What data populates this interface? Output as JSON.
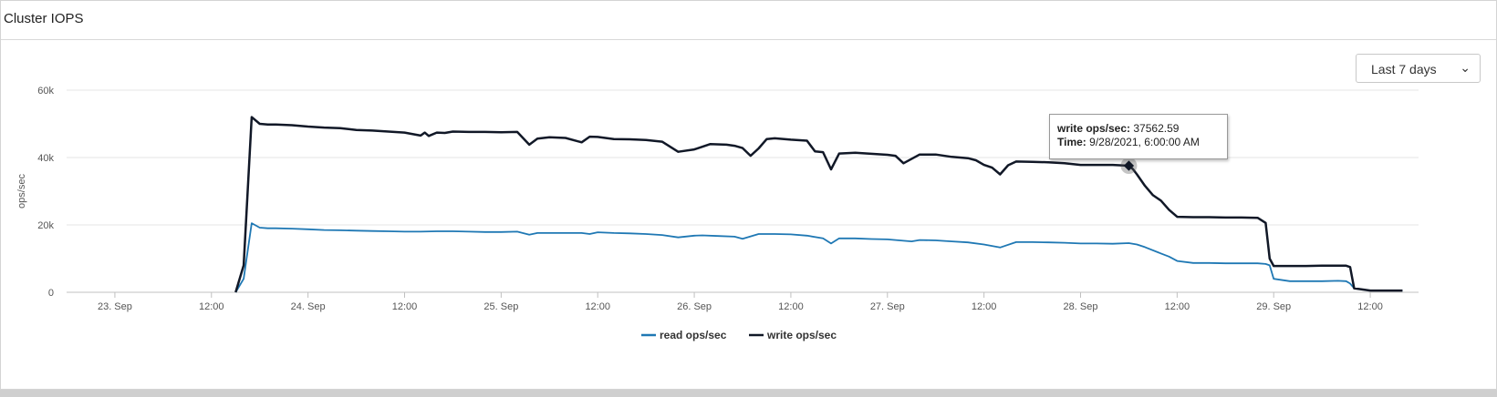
{
  "panel": {
    "title": "Cluster IOPS"
  },
  "range_select": {
    "value": "Last 7 days"
  },
  "tooltip": {
    "series_label": "write ops/sec",
    "value": "37562.59",
    "time_label": "Time",
    "time_value": "9/28/2021, 6:00:00 AM"
  },
  "colors": {
    "read": "#1f78b4",
    "write": "#111827",
    "grid": "#e6e6e6"
  },
  "chart_data": {
    "type": "line",
    "title": "",
    "xlabel": "",
    "ylabel": "ops/sec",
    "ylim": [
      0,
      60000
    ],
    "yticks": [
      0,
      20000,
      40000,
      60000
    ],
    "ytick_labels": [
      "0",
      "20k",
      "40k",
      "60k"
    ],
    "x_unit": "hours since 23 Sep 00:00",
    "xlim": [
      -6,
      162
    ],
    "xticks": [
      0,
      12,
      24,
      36,
      48,
      60,
      72,
      84,
      96,
      108,
      120,
      132,
      144,
      156
    ],
    "xtick_labels": [
      "23. Sep",
      "12:00",
      "24. Sep",
      "12:00",
      "25. Sep",
      "12:00",
      "26. Sep",
      "12:00",
      "27. Sep",
      "12:00",
      "28. Sep",
      "12:00",
      "29. Sep",
      "12:00"
    ],
    "legend": "bottom-center",
    "grid": true,
    "series": [
      {
        "name": "read ops/sec",
        "color": "#1f78b4",
        "x": [
          15,
          16,
          17,
          18,
          19,
          20,
          22,
          24,
          26,
          28,
          30,
          32,
          34,
          36,
          38,
          40,
          42,
          44,
          46,
          48,
          50,
          51.5,
          52.5,
          54,
          56,
          58,
          59,
          60,
          62,
          64,
          66,
          68,
          70,
          72,
          73,
          75,
          77,
          78,
          80,
          82,
          84,
          86,
          88,
          89,
          90,
          92,
          94,
          96,
          98,
          99,
          100,
          102,
          104,
          106,
          108,
          110,
          112,
          114,
          116,
          118,
          120,
          122,
          124,
          126,
          127,
          128,
          130,
          131,
          132,
          134,
          136,
          138,
          140,
          142,
          143,
          143.5,
          144,
          146,
          148,
          150,
          152,
          153,
          153.5,
          154,
          156,
          158,
          160
        ],
        "y": [
          0,
          4000,
          20500,
          19200,
          19000,
          19000,
          18900,
          18700,
          18500,
          18400,
          18300,
          18200,
          18100,
          18000,
          18000,
          18100,
          18100,
          18000,
          17900,
          17900,
          18000,
          17100,
          17600,
          17600,
          17600,
          17600,
          17300,
          17800,
          17600,
          17500,
          17300,
          17000,
          16300,
          16800,
          16900,
          16700,
          16500,
          15900,
          17300,
          17300,
          17200,
          16800,
          16000,
          14500,
          16000,
          16000,
          15800,
          15700,
          15300,
          15100,
          15500,
          15400,
          15100,
          14800,
          14200,
          13300,
          14900,
          14900,
          14800,
          14700,
          14500,
          14500,
          14400,
          14600,
          14200,
          13400,
          11500,
          10600,
          9300,
          8700,
          8700,
          8600,
          8600,
          8600,
          8400,
          8000,
          4000,
          3300,
          3300,
          3300,
          3400,
          3300,
          2600,
          1200,
          500,
          500,
          500
        ]
      },
      {
        "name": "write ops/sec",
        "color": "#111827",
        "x": [
          15,
          16,
          17,
          18,
          19,
          20,
          22,
          24,
          26,
          28,
          30,
          32,
          34,
          36,
          38,
          38.5,
          39,
          40,
          41,
          42,
          44,
          46,
          48,
          50,
          51.5,
          52.5,
          54,
          56,
          58,
          59,
          60,
          62,
          64,
          66,
          68,
          70,
          72,
          74,
          76,
          77,
          78,
          79,
          80,
          81,
          82,
          84,
          86,
          87,
          88,
          89,
          90,
          92,
          94,
          96,
          97,
          98,
          100,
          102,
          104,
          106,
          107,
          108,
          109,
          110,
          111,
          112,
          114,
          116,
          118,
          120,
          122,
          124,
          126,
          126.5,
          127,
          128,
          129,
          130,
          131,
          132,
          134,
          136,
          138,
          140,
          142,
          143,
          143.5,
          144,
          146,
          148,
          150,
          152,
          153,
          153.5,
          154,
          156,
          158,
          160
        ],
        "y": [
          0,
          8000,
          52000,
          50000,
          49800,
          49800,
          49600,
          49200,
          48900,
          48700,
          48200,
          48000,
          47700,
          47400,
          46500,
          47400,
          46400,
          47400,
          47300,
          47700,
          47600,
          47600,
          47500,
          47600,
          43800,
          45600,
          46000,
          45800,
          44500,
          46200,
          46100,
          45500,
          45400,
          45200,
          44700,
          41700,
          42400,
          44000,
          43800,
          43500,
          42800,
          40500,
          42700,
          45500,
          45700,
          45300,
          45000,
          41800,
          41600,
          36500,
          41200,
          41400,
          41100,
          40800,
          40500,
          38300,
          40900,
          40900,
          40200,
          39800,
          39200,
          37800,
          37000,
          35000,
          37700,
          38800,
          38700,
          38600,
          38300,
          37800,
          37800,
          37800,
          37562.59,
          36600,
          35000,
          31600,
          28800,
          27200,
          24500,
          22400,
          22300,
          22300,
          22200,
          22200,
          22100,
          20600,
          10000,
          7800,
          7800,
          7800,
          7900,
          7900,
          7900,
          7500,
          1200,
          500,
          500,
          500
        ]
      }
    ],
    "highlight": {
      "series": "write ops/sec",
      "x": 126,
      "y": 37562.59
    }
  }
}
